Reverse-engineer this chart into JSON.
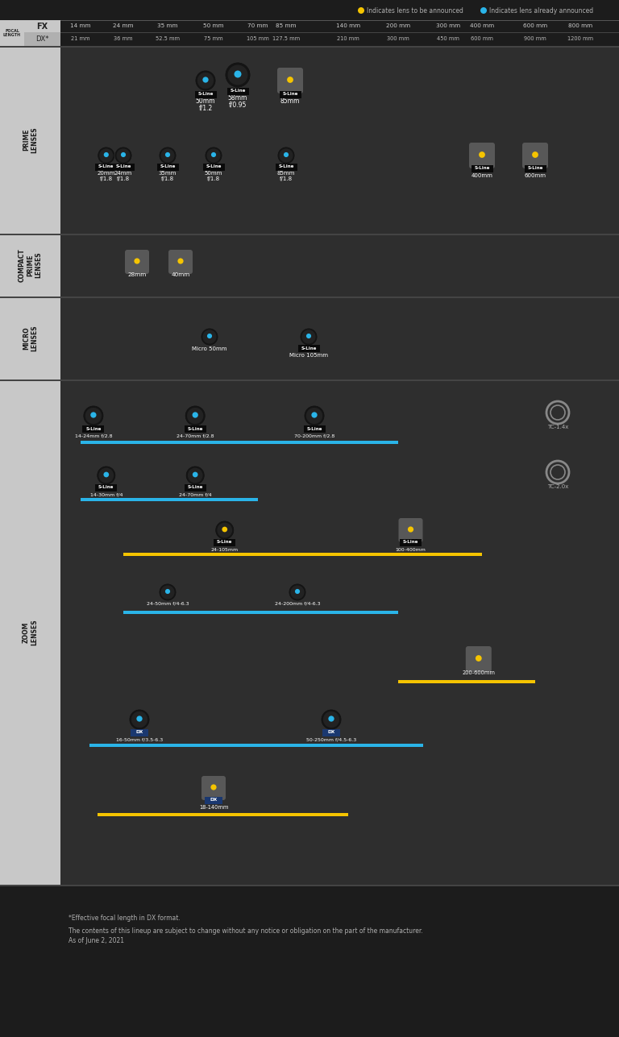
{
  "bg": "#1c1c1c",
  "sec_bg": "#2e2e2e",
  "label_bg": "#c8c8c8",
  "cyan": "#2ab4e8",
  "yellow": "#f5c400",
  "white": "#ffffff",
  "lgray": "#b0b0b0",
  "mgray": "#888888",
  "dgray": "#555555",
  "black": "#0a0a0a",
  "note1": "*Effective focal length in DX format.",
  "note2": "The contents of this lineup are subject to change without any notice or obligation on the part of the manufacturer.",
  "note3": "As of June 2, 2021",
  "fx_labels": [
    "14 mm",
    "24 mm",
    "35 mm",
    "50 mm",
    "70 mm",
    "85 mm",
    "140 mm",
    "200 mm",
    "300 mm",
    "400 mm",
    "600 mm",
    "800 mm"
  ],
  "dx_labels": [
    "21 mm",
    "36 mm",
    "52.5 mm",
    "75 mm",
    "105 mm",
    "127.5 mm",
    "210 mm",
    "300 mm",
    "450 mm",
    "600 mm",
    "900 mm",
    "1200 mm"
  ],
  "fx_mm": [
    14,
    24,
    35,
    50,
    70,
    85,
    140,
    200,
    300,
    400,
    600,
    800
  ],
  "focal_anchors_mm": [
    14,
    24,
    35,
    50,
    70,
    85,
    140,
    200,
    300,
    400,
    600,
    800
  ],
  "focal_anchors_x": [
    100,
    153,
    208,
    265,
    320,
    355,
    432,
    494,
    556,
    598,
    664,
    720
  ]
}
